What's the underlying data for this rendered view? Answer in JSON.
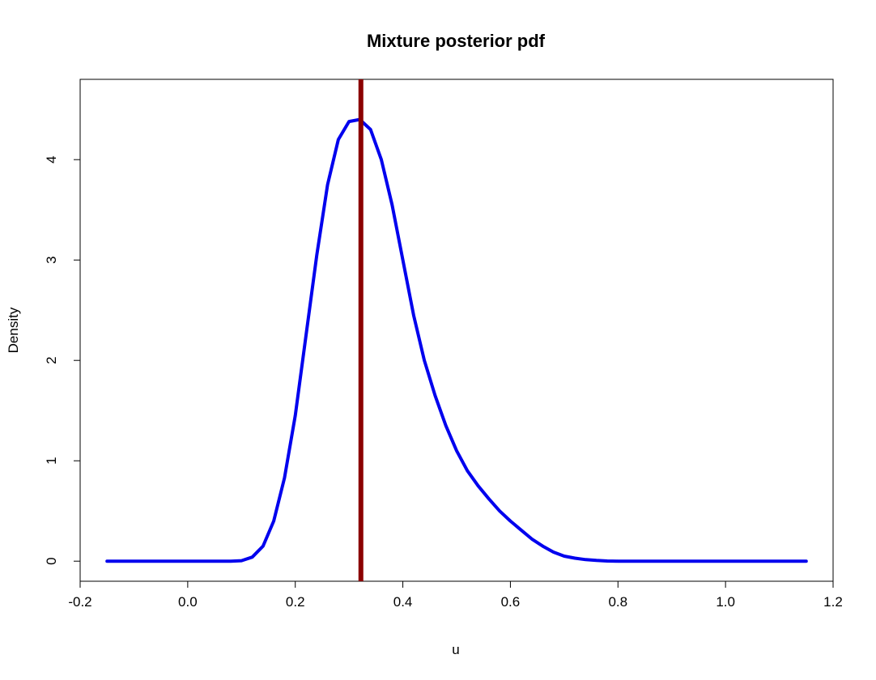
{
  "chart_data": {
    "type": "line",
    "title": "Mixture posterior pdf",
    "xlabel": "u",
    "ylabel": "Density",
    "xlim": [
      -0.2,
      1.2
    ],
    "ylim": [
      -0.2,
      4.8
    ],
    "x_ticks": [
      -0.2,
      0.0,
      0.2,
      0.4,
      0.6,
      0.8,
      1.0,
      1.2
    ],
    "x_tick_labels": [
      "-0.2",
      "0.0",
      "0.2",
      "0.4",
      "0.6",
      "0.8",
      "1.0",
      "1.2"
    ],
    "y_ticks": [
      0,
      1,
      2,
      3,
      4
    ],
    "y_tick_labels": [
      "0",
      "1",
      "2",
      "3",
      "4"
    ],
    "grid": false,
    "series": [
      {
        "color": "#0000ee",
        "x": [
          -0.15,
          0.0,
          0.08,
          0.1,
          0.12,
          0.14,
          0.16,
          0.18,
          0.2,
          0.22,
          0.24,
          0.26,
          0.28,
          0.3,
          0.32,
          0.34,
          0.36,
          0.38,
          0.4,
          0.42,
          0.44,
          0.46,
          0.48,
          0.5,
          0.52,
          0.54,
          0.56,
          0.58,
          0.6,
          0.62,
          0.64,
          0.66,
          0.68,
          0.7,
          0.72,
          0.74,
          0.76,
          0.78,
          0.8,
          1.0,
          1.15
        ],
        "y": [
          0.0,
          0.0,
          0.0,
          0.005,
          0.04,
          0.15,
          0.4,
          0.83,
          1.45,
          2.25,
          3.05,
          3.75,
          4.2,
          4.38,
          4.4,
          4.3,
          4.0,
          3.55,
          3.0,
          2.45,
          2.0,
          1.65,
          1.35,
          1.1,
          0.9,
          0.75,
          0.62,
          0.5,
          0.4,
          0.31,
          0.22,
          0.15,
          0.09,
          0.05,
          0.03,
          0.015,
          0.007,
          0.002,
          0.0,
          0.0,
          0.0
        ]
      }
    ],
    "vline": {
      "x": 0.322,
      "color": "#8b0000"
    }
  }
}
